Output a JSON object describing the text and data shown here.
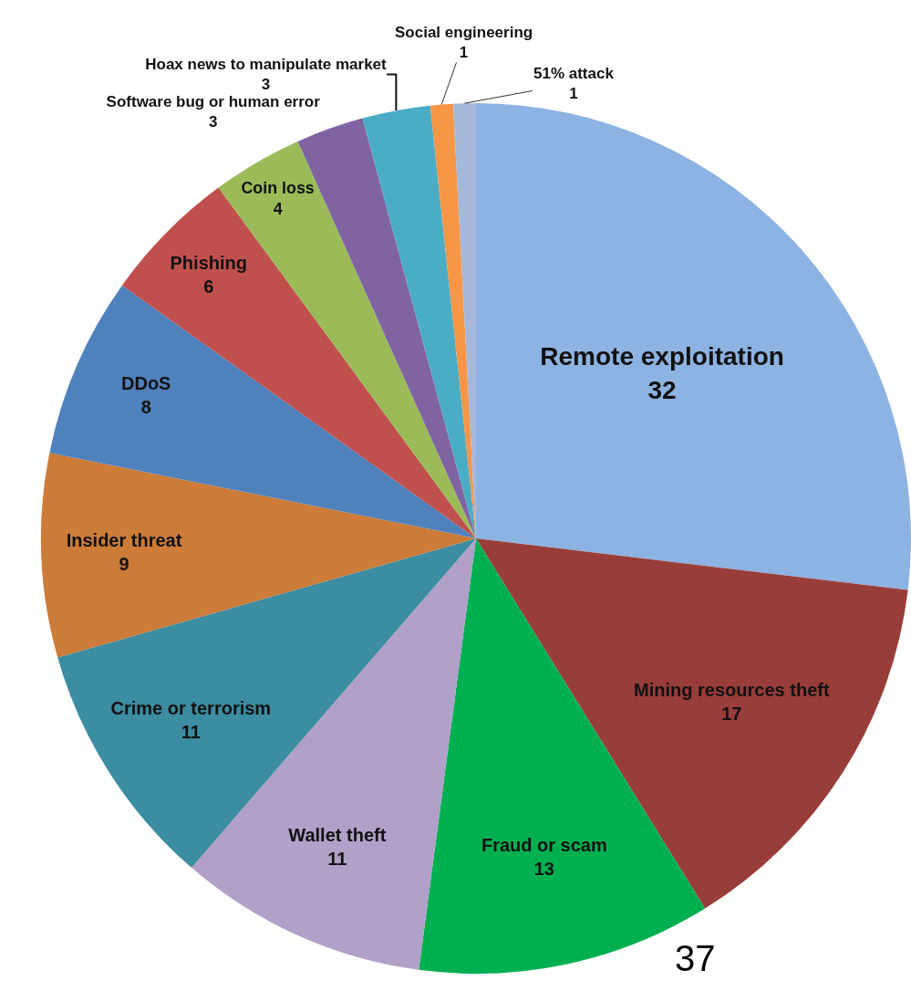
{
  "chart_data": {
    "type": "pie",
    "categories": [
      "Remote exploitation",
      "Mining resources theft",
      "Fraud or scam",
      "Wallet theft",
      "Crime or terrorism",
      "Insider threat",
      "DDoS",
      "Phishing",
      "Coin loss",
      "Software bug or human error",
      "Hoax news to manipulate market",
      "Social engineering",
      "51% attack"
    ],
    "values": [
      32,
      17,
      13,
      11,
      11,
      9,
      8,
      6,
      4,
      3,
      3,
      1,
      1
    ],
    "colors": [
      "#8db3e2",
      "#993d3a",
      "#00b050",
      "#b1a0c7",
      "#3c8ca2",
      "#cc7b38",
      "#4f81bd",
      "#c0504d",
      "#9bbb59",
      "#8064a2",
      "#4bacc6",
      "#f79646",
      "#a6b8da"
    ],
    "data_labels": true,
    "annotations": [
      "37"
    ]
  }
}
